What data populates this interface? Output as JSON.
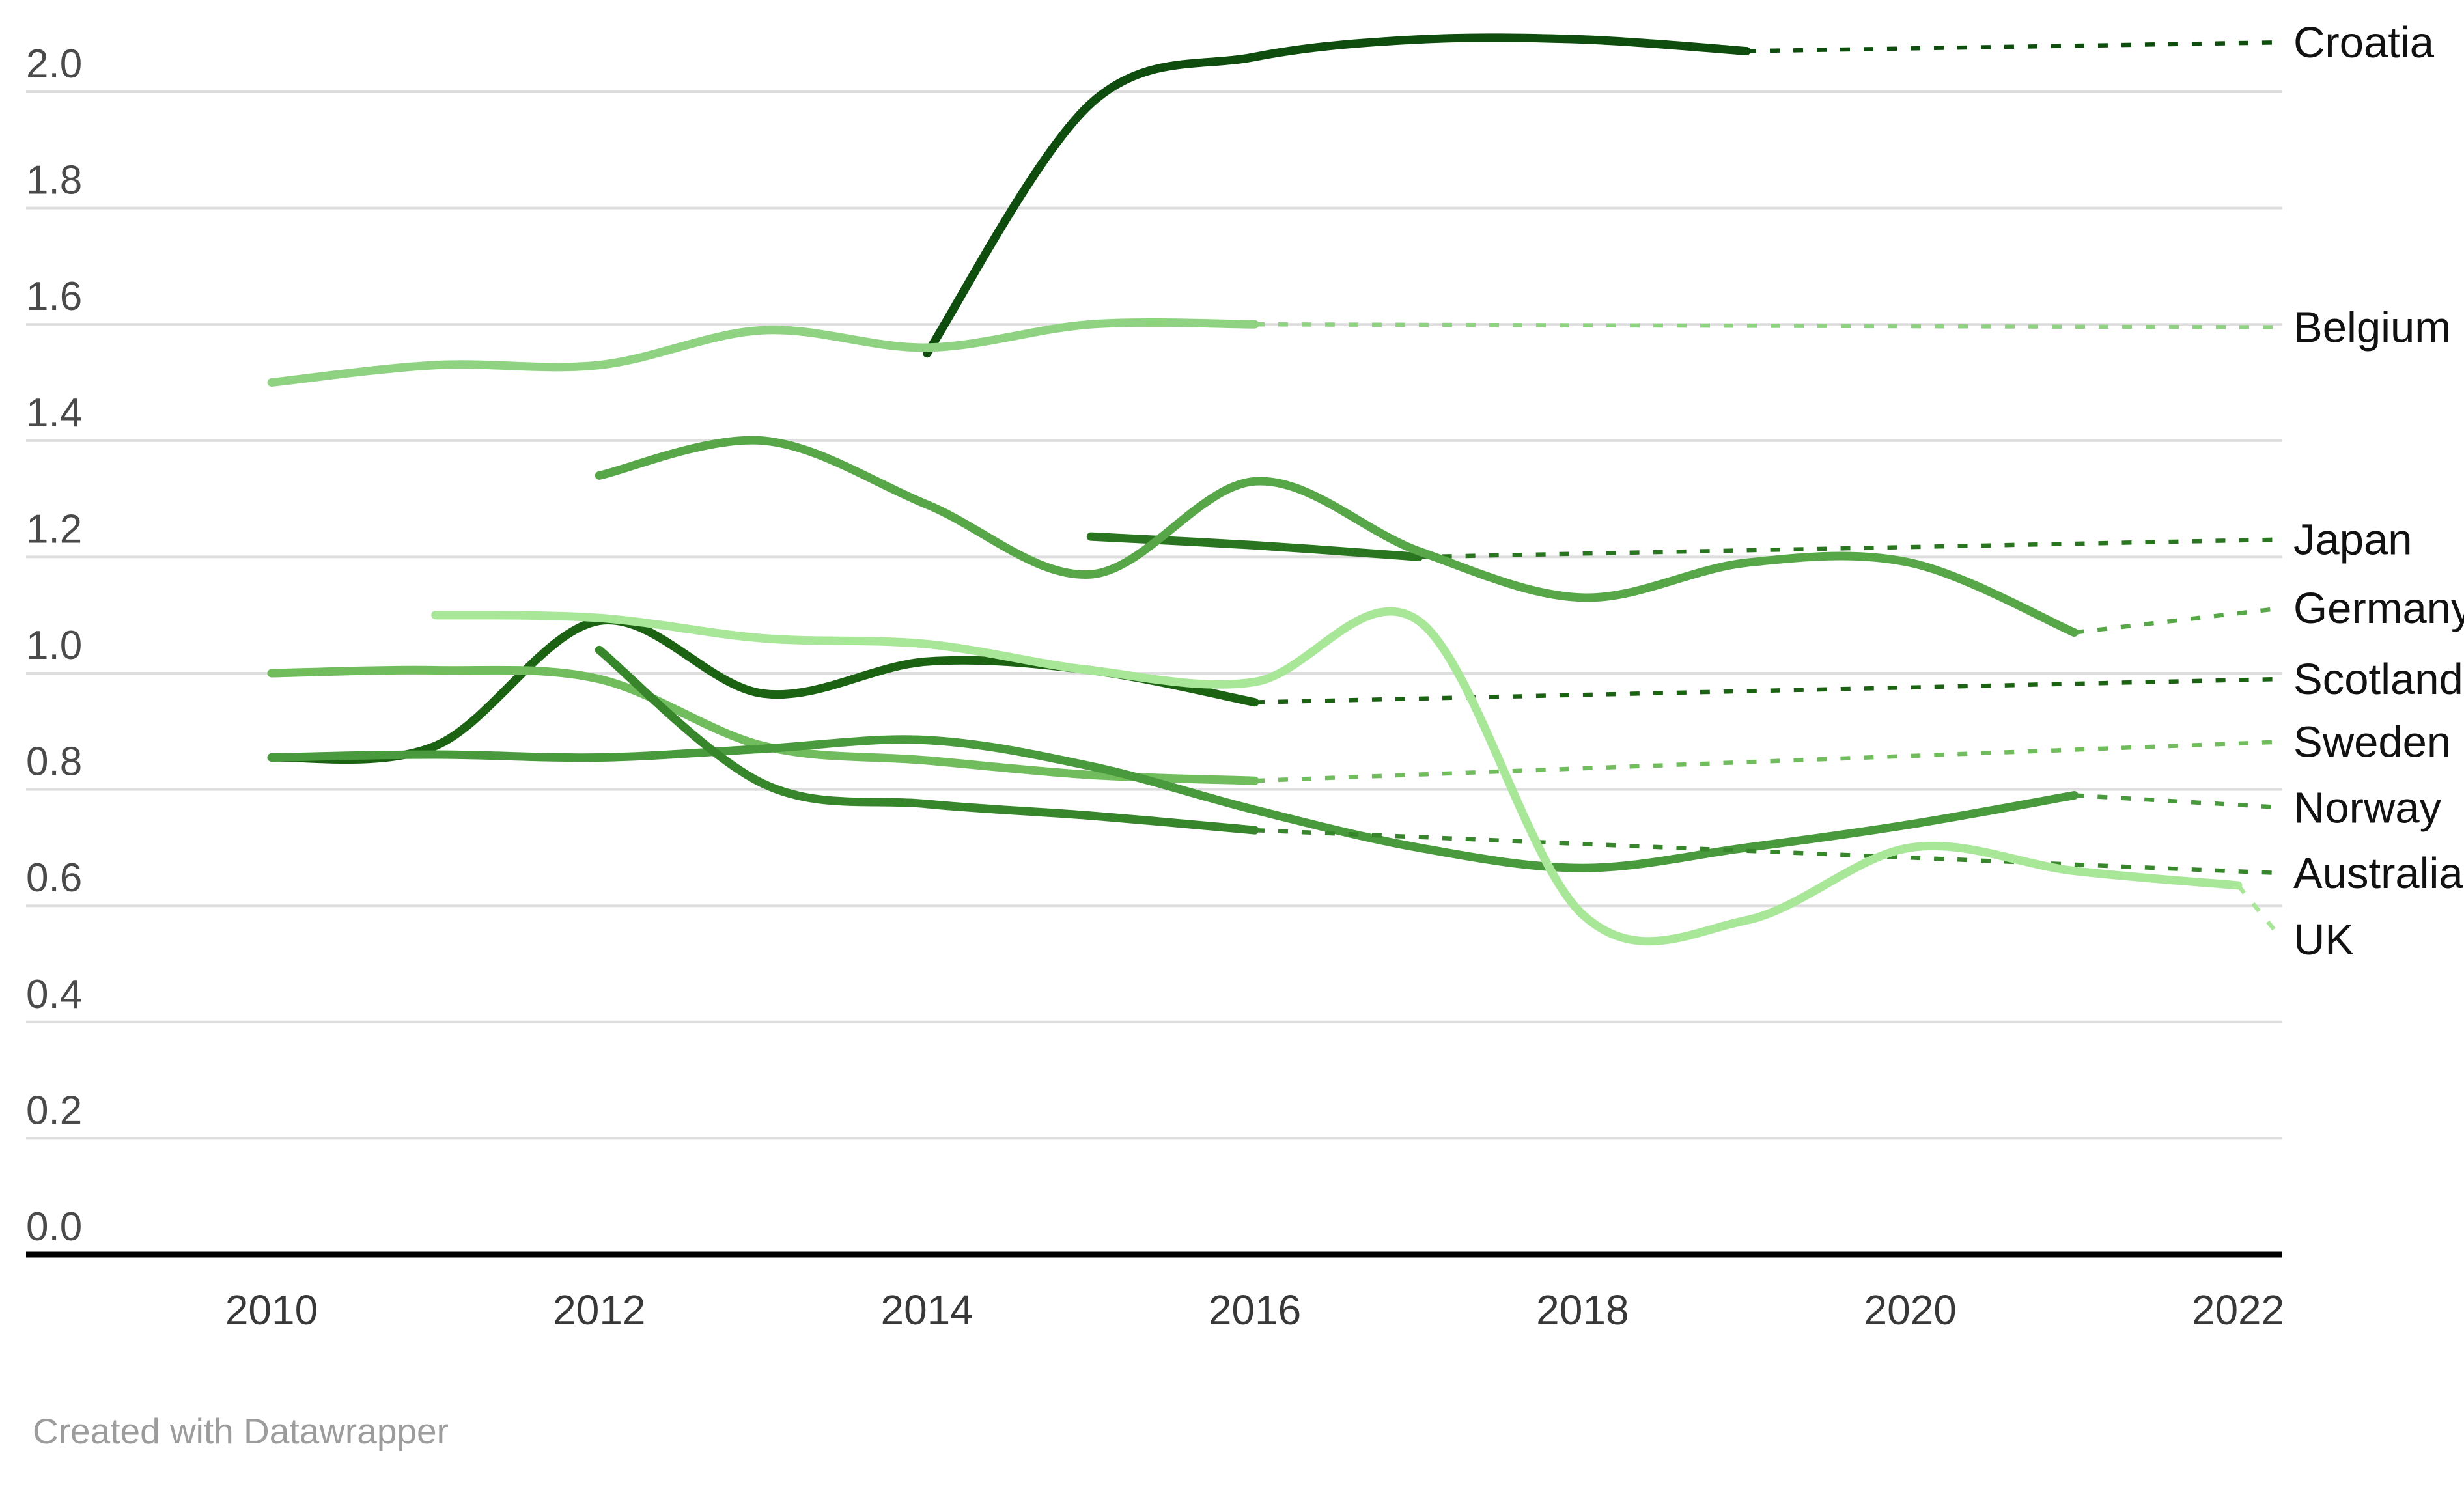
{
  "attribution": "Created with Datawrapper",
  "colors": {
    "background": "#ffffff",
    "gridline": "#dedede",
    "axis_line": "#000000",
    "y_tick_text": "#4a4a4a",
    "x_tick_text": "#383838",
    "series_label_text": "#111111",
    "attribution_text": "#9c9c9c"
  },
  "chart_data": {
    "type": "line",
    "title": "",
    "xlabel": "",
    "ylabel": "",
    "grid": true,
    "legend_position": "right-edge-direct-labels",
    "xlim": [
      2009.5,
      2022.3
    ],
    "ylim": [
      0.0,
      2.16
    ],
    "x_ticks": [
      "2010",
      "2012",
      "2014",
      "2016",
      "2018",
      "2020",
      "2022"
    ],
    "y_ticks": [
      "0.0",
      "0.2",
      "0.4",
      "0.6",
      "0.8",
      "1.0",
      "1.2",
      "1.4",
      "1.6",
      "1.8",
      "2.0"
    ],
    "line_style": {
      "solid_width": 13,
      "dash_width": 6.5,
      "dash_pattern": "15 21"
    },
    "series": [
      {
        "name": "Croatia",
        "color": "#0e4d0e",
        "years": [
          2014,
          2015,
          2016,
          2017,
          2018,
          2019
        ],
        "values": [
          1.55,
          1.98,
          2.06,
          2.09,
          2.09,
          2.07
        ],
        "label_value": 2.085
      },
      {
        "name": "Belgium",
        "color": "#8fd382",
        "years": [
          2010,
          2011,
          2012,
          2013,
          2014,
          2015,
          2016
        ],
        "values": [
          1.5,
          1.53,
          1.53,
          1.59,
          1.56,
          1.6,
          1.6
        ],
        "label_value": 1.595
      },
      {
        "name": "Japan",
        "color": "#2a751f",
        "years": [
          2015,
          2016,
          2017
        ],
        "values": [
          1.235,
          1.22,
          1.2
        ],
        "label_value": 1.23
      },
      {
        "name": "Germany",
        "color": "#57a748",
        "years": [
          2012,
          2013,
          2014,
          2015,
          2016,
          2017,
          2018,
          2019,
          2020,
          2021
        ],
        "values": [
          1.34,
          1.4,
          1.29,
          1.17,
          1.33,
          1.21,
          1.13,
          1.19,
          1.19,
          1.07
        ],
        "label_value": 1.112
      },
      {
        "name": "Scotland",
        "color": "#1b6312",
        "years": [
          2010,
          2011,
          2012,
          2013,
          2014,
          2015,
          2016
        ],
        "values": [
          0.855,
          0.875,
          1.09,
          0.965,
          1.02,
          1.005,
          0.95
        ],
        "label_value": 0.99
      },
      {
        "name": "Sweden",
        "color": "#71bd5e",
        "years": [
          2010,
          2011,
          2012,
          2013,
          2014,
          2015,
          2016
        ],
        "values": [
          1.0,
          1.005,
          0.99,
          0.875,
          0.85,
          0.825,
          0.815
        ],
        "label_value": 0.882
      },
      {
        "name": "Norway",
        "color": "#499a3c",
        "years": [
          2010,
          2011,
          2012,
          2013,
          2014,
          2015,
          2016,
          2017,
          2018,
          2019,
          2020,
          2021
        ],
        "values": [
          0.855,
          0.86,
          0.855,
          0.87,
          0.885,
          0.84,
          0.765,
          0.7,
          0.665,
          0.7,
          0.74,
          0.79
        ],
        "label_value": 0.769
      },
      {
        "name": "Australia",
        "color": "#38862c",
        "years": [
          2012,
          2013,
          2014,
          2015,
          2016
        ],
        "values": [
          1.04,
          0.81,
          0.775,
          0.755,
          0.73
        ],
        "label_value": 0.656
      },
      {
        "name": "UK",
        "color": "#a8e698",
        "years": [
          2011,
          2012,
          2013,
          2014,
          2015,
          2016,
          2017,
          2018,
          2019,
          2020,
          2021,
          2022
        ],
        "values": [
          1.1,
          1.095,
          1.06,
          1.05,
          1.005,
          0.985,
          1.09,
          0.585,
          0.575,
          0.7,
          0.66,
          0.635
        ],
        "label_value": 0.542
      }
    ]
  }
}
